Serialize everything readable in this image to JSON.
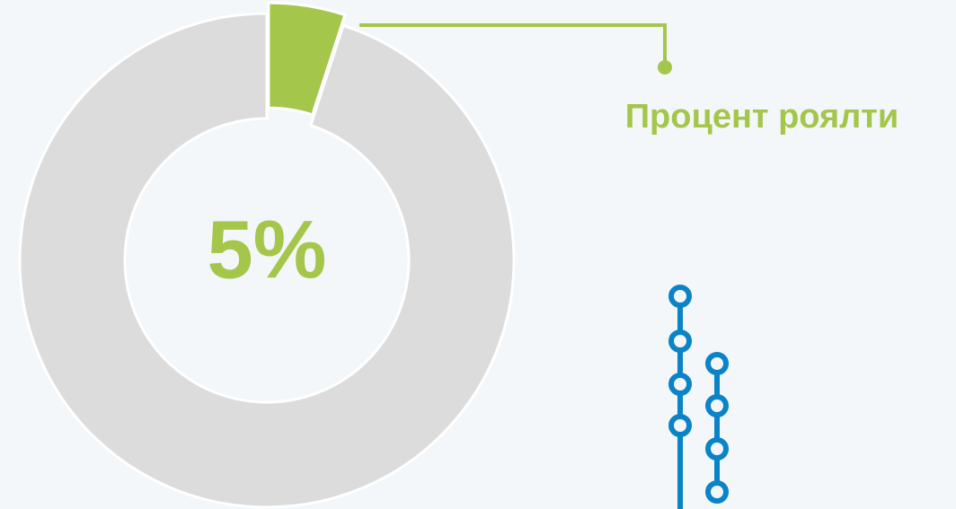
{
  "chart_data": {
    "type": "donut",
    "categories": [
      "Процент роялти",
      null
    ],
    "values": [
      5,
      95
    ],
    "value_labels": [
      "5%",
      null
    ],
    "colors": [
      "#a3c64b",
      "#dcdcdc"
    ]
  }
}
